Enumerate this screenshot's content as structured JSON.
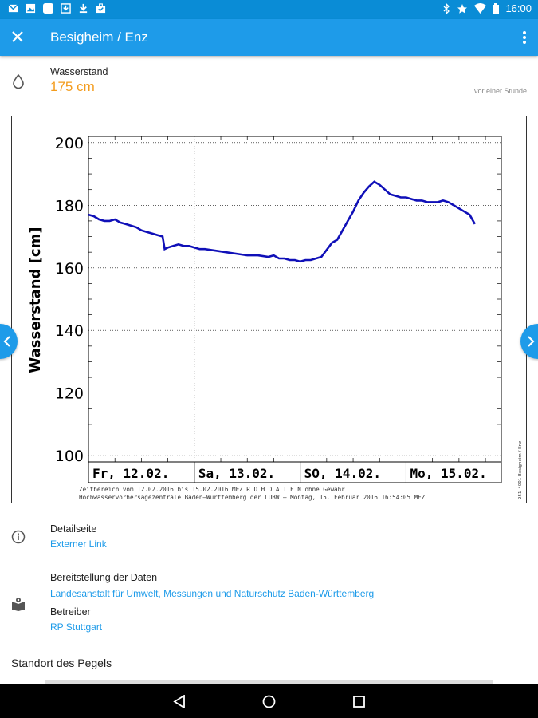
{
  "status_bar": {
    "time": "16:00",
    "icons_left": [
      "mail-icon",
      "image-icon",
      "blank-icon",
      "download-box-icon",
      "download-icon",
      "briefcase-check-icon"
    ],
    "icons_right": [
      "bluetooth-icon",
      "star-icon",
      "wifi-icon",
      "battery-icon"
    ]
  },
  "app_bar": {
    "title": "Besigheim / Enz",
    "close_icon": "close-icon",
    "more_icon": "more-vert-icon"
  },
  "water_level": {
    "label": "Wasserstand",
    "value": "175 cm",
    "timestamp": "vor einer Stunde",
    "icon": "water-drop-icon"
  },
  "chart_data": {
    "type": "line",
    "ylabel": "Wasserstand [cm]",
    "ylim": [
      98,
      202
    ],
    "yticks": [
      "200",
      "180",
      "160",
      "140",
      "120",
      "100"
    ],
    "xlabels": [
      "Fr, 12.02.",
      "Sa, 13.02.",
      "SO, 14.02.",
      "Mo, 15.02."
    ],
    "xlim": [
      0,
      3.9
    ],
    "footer_line1": "Zeitbereich vom 12.02.2016 bis 15.02.2016     MEZ     R O H D A T E N  ohne Gewähr",
    "footer_line2": "Hochwasservorhersagezentrale Baden–Württemberg der LUBW  –  Montag, 15. Februar 2016  16:54:05 MEZ",
    "side_note": "251–4001 Besigheim / Enz",
    "line_color": "#1010B8",
    "series": [
      {
        "x": [
          0.0,
          0.05,
          0.1,
          0.15,
          0.2,
          0.25,
          0.3,
          0.35,
          0.4,
          0.45,
          0.5,
          0.55,
          0.6,
          0.65,
          0.7,
          0.72,
          0.75,
          0.8,
          0.85,
          0.9,
          0.95,
          1.0,
          1.05,
          1.1,
          1.2,
          1.3,
          1.4,
          1.5,
          1.6,
          1.7,
          1.75,
          1.8,
          1.85,
          1.9,
          1.95,
          2.0,
          2.05,
          2.1,
          2.2,
          2.3,
          2.35,
          2.4,
          2.45,
          2.5,
          2.55,
          2.6,
          2.65,
          2.7,
          2.75,
          2.8,
          2.85,
          2.9,
          2.95,
          3.0,
          3.05,
          3.1,
          3.15,
          3.2,
          3.25,
          3.3,
          3.35,
          3.4,
          3.45,
          3.5,
          3.55,
          3.6,
          3.65
        ],
        "y": [
          177,
          176.5,
          175.5,
          175,
          175,
          175.5,
          174.5,
          174,
          173.5,
          173,
          172,
          171.5,
          171,
          170.5,
          170,
          166,
          166.5,
          167,
          167.5,
          167,
          167,
          166.5,
          166,
          166,
          165.5,
          165,
          164.5,
          164,
          164,
          163.5,
          164,
          163,
          163,
          162.5,
          162.5,
          162,
          162.5,
          162.5,
          163.5,
          168,
          169,
          172,
          175,
          178,
          181.5,
          184,
          186,
          187.5,
          186.5,
          185,
          183.5,
          183,
          182.5,
          182.5,
          182,
          181.5,
          181.5,
          181,
          181,
          181,
          181.5,
          181,
          180,
          179,
          178,
          177,
          174
        ]
      }
    ]
  },
  "nav": {
    "prev_icon": "chevron-left-icon",
    "next_icon": "chevron-right-icon"
  },
  "detail": {
    "label": "Detailseite",
    "link": "Externer Link",
    "icon": "info-icon"
  },
  "data_provision": {
    "label": "Bereitstellung der Daten",
    "link": "Landesanstalt für Umwelt, Messungen und Naturschutz Baden-Württemberg",
    "operator_label": "Betreiber",
    "operator_link": "RP Stuttgart",
    "icon": "map-book-icon"
  },
  "location": {
    "title": "Standort des Pegels"
  },
  "nav_bar": {
    "icons": [
      "back-icon",
      "home-icon",
      "recents-icon"
    ]
  }
}
